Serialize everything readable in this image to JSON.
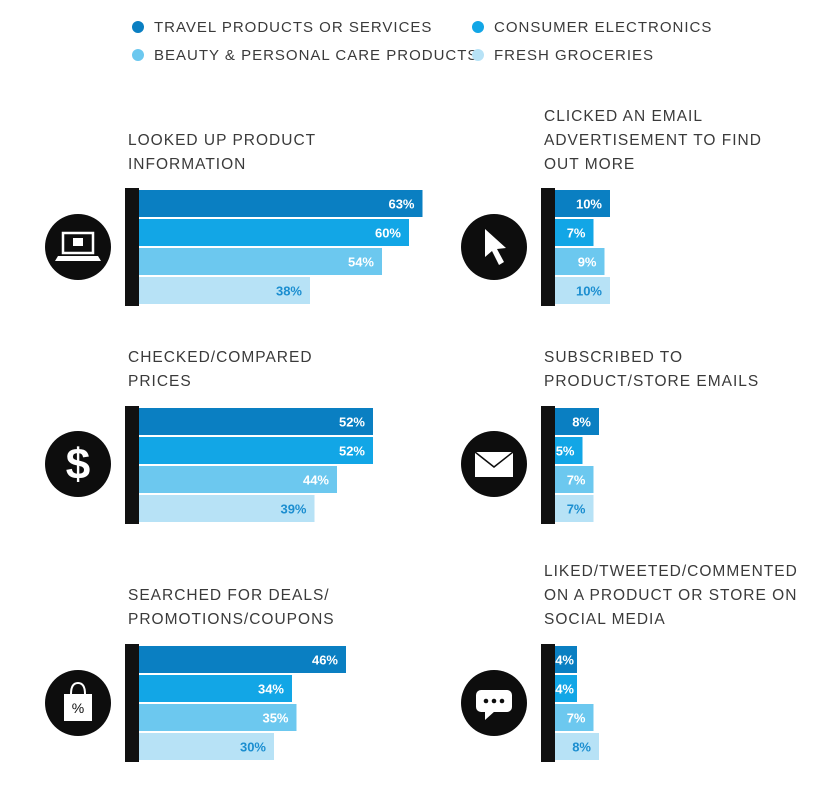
{
  "chart_data": {
    "type": "bar",
    "orientation": "horizontal",
    "unit": "%",
    "series": [
      {
        "name": "TRAVEL PRODUCTS OR SERVICES",
        "color": "#0a7fc2"
      },
      {
        "name": "CONSUMER ELECTRONICS",
        "color": "#12a6e6"
      },
      {
        "name": "BEAUTY & PERSONAL CARE PRODUCTS",
        "color": "#6cc8ef"
      },
      {
        "name": "FRESH GROCERIES",
        "color": "#b7e2f6"
      }
    ],
    "panels": [
      {
        "title_lines": [
          "LOOKED UP PRODUCT",
          "INFORMATION"
        ],
        "icon": "laptop-icon",
        "values": [
          63,
          60,
          54,
          38
        ],
        "labels": [
          "63%",
          "60%",
          "54%",
          "38%"
        ]
      },
      {
        "title_lines": [
          "CLICKED AN EMAIL",
          "ADVERTISEMENT TO FIND",
          "OUT MORE"
        ],
        "icon": "cursor-icon",
        "values": [
          10,
          7,
          9,
          10
        ],
        "labels": [
          "10%",
          "7%",
          "9%",
          "10%"
        ]
      },
      {
        "title_lines": [
          "CHECKED/COMPARED",
          "PRICES"
        ],
        "icon": "dollar-icon",
        "values": [
          52,
          52,
          44,
          39
        ],
        "labels": [
          "52%",
          "52%",
          "44%",
          "39%"
        ]
      },
      {
        "title_lines": [
          "SUBSCRIBED TO",
          "PRODUCT/STORE EMAILS"
        ],
        "icon": "envelope-icon",
        "values": [
          8,
          5,
          7,
          7
        ],
        "labels": [
          "8%",
          "5%",
          "7%",
          "7%"
        ]
      },
      {
        "title_lines": [
          "SEARCHED FOR DEALS/",
          "PROMOTIONS/COUPONS"
        ],
        "icon": "shopping-bag-icon",
        "values": [
          46,
          34,
          35,
          30
        ],
        "labels": [
          "46%",
          "34%",
          "35%",
          "30%"
        ]
      },
      {
        "title_lines": [
          "LIKED/TWEETED/COMMENTED",
          "ON A PRODUCT OR STORE ON",
          "SOCIAL MEDIA"
        ],
        "icon": "chat-bubble-icon",
        "values": [
          4,
          4,
          7,
          8
        ],
        "labels": [
          "4%",
          "4%",
          "7%",
          "8%"
        ]
      }
    ],
    "colors": {
      "axis": "#111111",
      "icon_bg": "#0d0d0d",
      "label_on_dark": "#ffffff",
      "label_on_light": "#1b8ed0",
      "label_outside": "#888888"
    }
  },
  "icons": {
    "percent_symbol": "%"
  }
}
